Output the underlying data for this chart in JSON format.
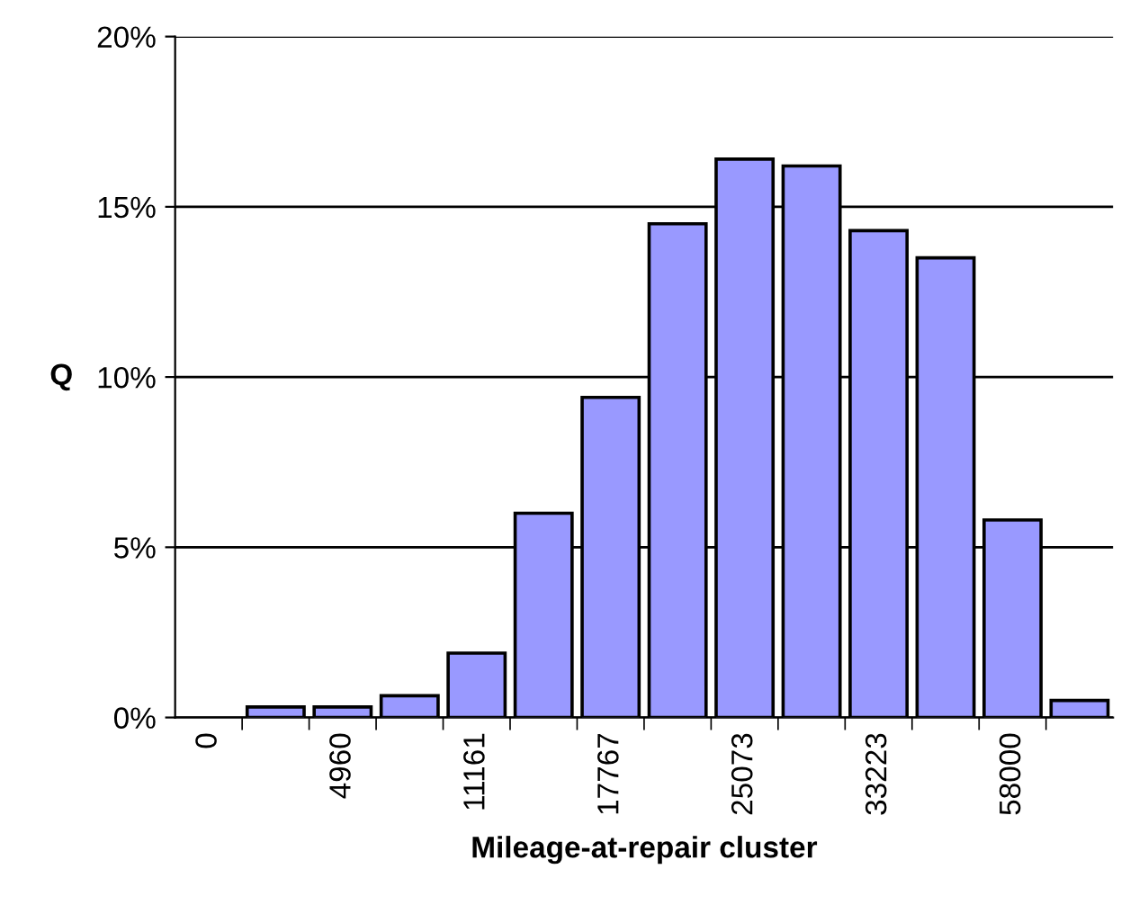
{
  "chart_data": {
    "type": "bar",
    "xlabel": "Mileage-at-repair cluster",
    "ylabel": "Q",
    "categories": [
      "0",
      null,
      "4960",
      null,
      "11161",
      null,
      "17767",
      null,
      "25073",
      null,
      "33223",
      null,
      "58000",
      null
    ],
    "values": [
      0,
      0.31,
      0.31,
      0.64,
      1.89,
      6.0,
      9.4,
      14.5,
      16.4,
      16.2,
      14.3,
      13.5,
      5.8,
      0.5
    ],
    "color": "#9999ff",
    "ylim": [
      0,
      20
    ],
    "yticks": [
      {
        "value": 0,
        "label": "0%"
      },
      {
        "value": 5,
        "label": "5%"
      },
      {
        "value": 10,
        "label": "10%"
      },
      {
        "value": 15,
        "label": "15%"
      },
      {
        "value": 20,
        "label": "20%"
      }
    ],
    "grid": "y"
  }
}
